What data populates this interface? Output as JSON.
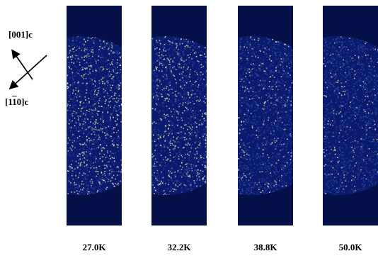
{
  "orientation": {
    "top_label_text": "[001]c",
    "bottom_label_prefix": "[1",
    "bottom_label_overline": "1",
    "bottom_label_suffix": "0]c",
    "icon": "crossed-arrows-icon"
  },
  "panels": [
    {
      "temperature": "27.0K",
      "brightness": 0.95
    },
    {
      "temperature": "32.2K",
      "brightness": 0.8
    },
    {
      "temperature": "38.8K",
      "brightness": 0.45
    },
    {
      "temperature": "50.0K",
      "brightness": 0.3
    }
  ],
  "colors": {
    "background": "#061048",
    "speckle_dark": "#0a1a6e",
    "speckle_mid": "#3b5aa8",
    "speckle_bright": "#e8e2a8"
  }
}
